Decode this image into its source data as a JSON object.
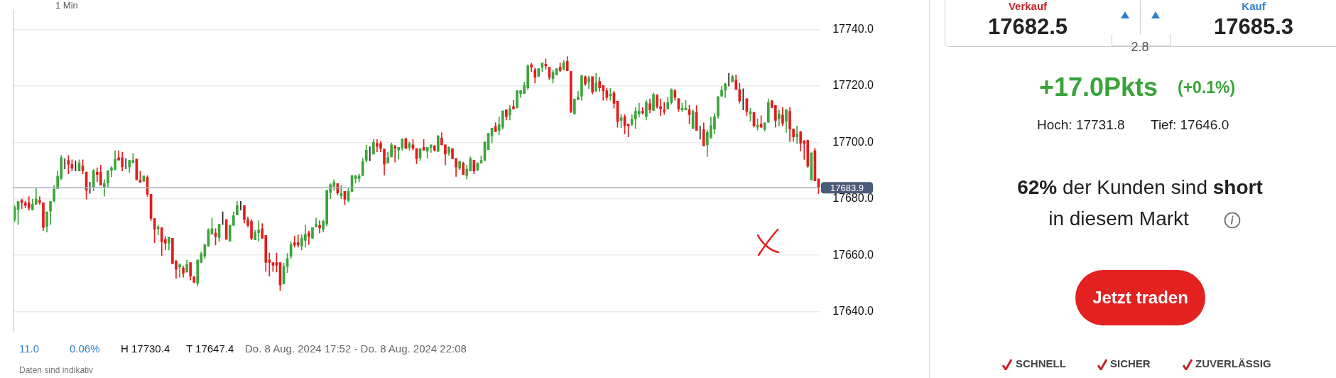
{
  "chart_data": [
    {
      "type": "candlestick",
      "categories": [
        null,
        null,
        null,
        null,
        null,
        null,
        null,
        null,
        null,
        null,
        null,
        null,
        null,
        null,
        null,
        null,
        null,
        null,
        null,
        null,
        null,
        null,
        null,
        null,
        null,
        null,
        null,
        null,
        null,
        null,
        null,
        null,
        null,
        null,
        null,
        null,
        null,
        null,
        null,
        null,
        null,
        null,
        null,
        null,
        null,
        null,
        null,
        null,
        null,
        null,
        null,
        null,
        null,
        null,
        null,
        null,
        null,
        null,
        null,
        null,
        null,
        null,
        null,
        null,
        null,
        null,
        null,
        null,
        null,
        null,
        null,
        null,
        null,
        null,
        null,
        null,
        null,
        null,
        null,
        null,
        null,
        null,
        null,
        null,
        null,
        null,
        null,
        null,
        null,
        null,
        null,
        null,
        null,
        null,
        null,
        null,
        null,
        null,
        null,
        null,
        null,
        null,
        null,
        null,
        null,
        null,
        null,
        null,
        null,
        null,
        null,
        null,
        null,
        null,
        null,
        null,
        null,
        null,
        null,
        null,
        null,
        null,
        null,
        null,
        null,
        null,
        null,
        null,
        null,
        null,
        null,
        null,
        null,
        null,
        null,
        null,
        null,
        null,
        null,
        null,
        null,
        null,
        null,
        null,
        null,
        null,
        null,
        null,
        null,
        null,
        null,
        null,
        null,
        null,
        null,
        null,
        null,
        null,
        null,
        null,
        null,
        null,
        null,
        null,
        null,
        null,
        null,
        null,
        null,
        null,
        null,
        null,
        null,
        null,
        null,
        null,
        null,
        null,
        null,
        null,
        null,
        null,
        null,
        null,
        null,
        null,
        null,
        null,
        null,
        null,
        null,
        null,
        null,
        null,
        null,
        null,
        null,
        null,
        null,
        null,
        null,
        null,
        null,
        null,
        null,
        null,
        null,
        null,
        null,
        null,
        null,
        null,
        null,
        null,
        null,
        null,
        null,
        null,
        null,
        null,
        null,
        null,
        null,
        null,
        null
      ],
      "ohlc": [
        [
          17672.6,
          17677.6,
          17671.8,
          17677.0
        ],
        [
          17676.2,
          17679.0,
          17670.8,
          17679.0
        ],
        [
          17679.4,
          17679.9,
          17676.4,
          17678.6
        ],
        [
          17678.5,
          17679.1,
          17676.8,
          17677.6
        ],
        [
          17678.5,
          17680.8,
          17675.9,
          17676.7
        ],
        [
          17676.2,
          17679.9,
          17675.9,
          17678.0
        ],
        [
          17678.0,
          17683.8,
          17678.0,
          17679.9
        ],
        [
          17679.4,
          17680.8,
          17678.0,
          17678.6
        ],
        [
          17678.6,
          17678.6,
          17668.7,
          17669.8
        ],
        [
          17670.2,
          17675.4,
          17668.2,
          17675.4
        ],
        [
          17675.6,
          17679.1,
          17670.8,
          17679.0
        ],
        [
          17679.2,
          17684.7,
          17678.8,
          17683.4
        ],
        [
          17683.6,
          17689.8,
          17683.6,
          17688.0
        ],
        [
          17687.2,
          17695.4,
          17686.8,
          17694.6
        ],
        [
          17694.0,
          17694.2,
          17690.6,
          17694.0
        ],
        [
          17693.6,
          17695.3,
          17688.8,
          17692.2
        ],
        [
          17692.2,
          17693.8,
          17689.8,
          17690.8
        ],
        [
          17690.8,
          17693.4,
          17689.8,
          17690.8
        ],
        [
          17689.8,
          17693.8,
          17689.8,
          17692.6
        ],
        [
          17691.7,
          17693.8,
          17688.8,
          17689.8
        ],
        [
          17689.5,
          17689.5,
          17679.9,
          17683.0
        ],
        [
          17683.8,
          17685.9,
          17681.9,
          17683.8
        ],
        [
          17684.2,
          17690.4,
          17682.8,
          17690.0
        ],
        [
          17689.5,
          17691.0,
          17686.0,
          17688.6
        ],
        [
          17689.5,
          17691.9,
          17684.8,
          17684.8
        ],
        [
          17684.2,
          17686.8,
          17680.9,
          17685.4
        ],
        [
          17685.6,
          17690.0,
          17684.2,
          17690.0
        ],
        [
          17690.0,
          17691.4,
          17687.8,
          17691.0
        ],
        [
          17690.3,
          17697.0,
          17690.3,
          17694.1
        ],
        [
          17694.6,
          17697.0,
          17693.7,
          17693.7
        ],
        [
          17694.6,
          17696.5,
          17689.8,
          17691.3
        ],
        [
          17690.8,
          17694.2,
          17690.6,
          17690.8
        ],
        [
          17691.3,
          17693.6,
          17689.4,
          17693.6
        ],
        [
          17692.7,
          17696.0,
          17692.7,
          17693.6
        ],
        [
          17694.1,
          17694.1,
          17686.7,
          17686.7
        ],
        [
          17686.6,
          17689.8,
          17685.8,
          17685.8
        ],
        [
          17686.2,
          17688.1,
          17686.2,
          17688.1
        ],
        [
          17687.6,
          17688.2,
          17680.8,
          17681.6
        ],
        [
          17681.6,
          17681.6,
          17672.2,
          17673.0
        ],
        [
          17673.0,
          17673.0,
          17664.4,
          17669.2
        ],
        [
          17669.4,
          17670.8,
          17667.2,
          17670.0
        ],
        [
          17669.8,
          17669.8,
          17659.8,
          17664.7
        ],
        [
          17665.6,
          17666.6,
          17661.8,
          17664.2
        ],
        [
          17664.2,
          17666.4,
          17661.8,
          17666.4
        ],
        [
          17666.0,
          17666.0,
          17657.0,
          17657.0
        ],
        [
          17657.9,
          17658.2,
          17651.8,
          17655.0
        ],
        [
          17655.8,
          17657.0,
          17652.2,
          17656.6
        ],
        [
          17655.4,
          17656.2,
          17652.2,
          17653.6
        ],
        [
          17654.0,
          17658.2,
          17654.0,
          17656.8
        ],
        [
          17657.4,
          17657.4,
          17651.2,
          17652.6
        ],
        [
          17652.2,
          17652.6,
          17650.2,
          17650.4
        ],
        [
          17650.0,
          17658.3,
          17649.2,
          17658.3
        ],
        [
          17657.4,
          17661.2,
          17657.4,
          17660.5
        ],
        [
          17659.6,
          17663.8,
          17658.8,
          17663.8
        ],
        [
          17663.2,
          17669.4,
          17663.2,
          17669.0
        ],
        [
          17667.4,
          17673.2,
          17667.4,
          17669.4
        ],
        [
          17667.8,
          17669.4,
          17663.6,
          17666.6
        ],
        [
          17666.2,
          17671.0,
          17664.8,
          17671.0
        ],
        [
          17671.8,
          17675.4,
          17670.8,
          17671.8
        ],
        [
          17672.6,
          17672.6,
          17665.6,
          17665.6
        ],
        [
          17665.0,
          17670.6,
          17665.0,
          17670.6
        ],
        [
          17670.6,
          17675.4,
          17670.6,
          17674.0
        ],
        [
          17674.2,
          17679.1,
          17674.2,
          17677.5
        ],
        [
          17677.0,
          17679.1,
          17676.0,
          17677.0
        ],
        [
          17677.6,
          17677.6,
          17671.4,
          17672.6
        ],
        [
          17672.6,
          17673.6,
          17670.0,
          17670.6
        ],
        [
          17672.0,
          17672.6,
          17665.4,
          17666.0
        ],
        [
          17665.4,
          17668.8,
          17665.4,
          17668.0
        ],
        [
          17668.0,
          17672.2,
          17665.0,
          17668.9
        ],
        [
          17669.4,
          17671.2,
          17666.0,
          17666.0
        ],
        [
          17667.0,
          17667.0,
          17654.2,
          17657.4
        ],
        [
          17658.3,
          17660.8,
          17652.6,
          17657.4
        ],
        [
          17657.4,
          17657.4,
          17654.2,
          17656.4
        ],
        [
          17657.4,
          17660.8,
          17654.0,
          17656.4
        ],
        [
          17657.4,
          17657.4,
          17647.4,
          17649.4
        ],
        [
          17649.8,
          17657.2,
          17649.8,
          17656.0
        ],
        [
          17656.0,
          17660.6,
          17653.8,
          17658.8
        ],
        [
          17659.6,
          17664.8,
          17658.8,
          17663.8
        ],
        [
          17664.4,
          17666.8,
          17662.8,
          17663.6
        ],
        [
          17664.4,
          17667.2,
          17662.8,
          17663.6
        ],
        [
          17663.2,
          17667.2,
          17661.8,
          17666.0
        ],
        [
          17665.2,
          17670.8,
          17662.8,
          17667.4
        ],
        [
          17667.9,
          17668.6,
          17663.8,
          17666.6
        ],
        [
          17666.0,
          17669.8,
          17666.0,
          17669.8
        ],
        [
          17670.0,
          17673.2,
          17670.0,
          17671.0
        ],
        [
          17670.6,
          17672.2,
          17667.8,
          17669.7
        ],
        [
          17669.2,
          17672.4,
          17668.2,
          17672.0
        ],
        [
          17671.1,
          17683.0,
          17670.4,
          17683.0
        ],
        [
          17682.2,
          17685.4,
          17680.0,
          17685.0
        ],
        [
          17684.4,
          17686.8,
          17683.0,
          17685.8
        ],
        [
          17685.4,
          17685.4,
          17681.4,
          17682.0
        ],
        [
          17681.0,
          17684.8,
          17680.0,
          17682.0
        ],
        [
          17682.6,
          17682.6,
          17677.8,
          17679.8
        ],
        [
          17679.4,
          17683.8,
          17678.8,
          17682.6
        ],
        [
          17682.6,
          17688.4,
          17682.4,
          17688.1
        ],
        [
          17687.1,
          17688.4,
          17685.6,
          17688.1
        ],
        [
          17687.1,
          17688.8,
          17686.0,
          17688.1
        ],
        [
          17688.2,
          17694.4,
          17688.2,
          17693.2
        ],
        [
          17693.6,
          17699.0,
          17693.0,
          17697.2
        ],
        [
          17696.6,
          17698.4,
          17693.4,
          17696.6
        ],
        [
          17695.8,
          17701.0,
          17695.8,
          17700.0
        ],
        [
          17699.6,
          17701.0,
          17696.6,
          17698.6
        ],
        [
          17699.6,
          17700.4,
          17696.6,
          17697.8
        ],
        [
          17697.6,
          17697.6,
          17688.4,
          17692.2
        ],
        [
          17692.6,
          17696.4,
          17692.6,
          17694.6
        ],
        [
          17694.8,
          17699.8,
          17694.8,
          17699.1
        ],
        [
          17698.6,
          17699.0,
          17693.0,
          17697.8
        ],
        [
          17697.2,
          17698.2,
          17694.0,
          17698.2
        ],
        [
          17698.0,
          17701.4,
          17697.2,
          17701.0
        ],
        [
          17701.4,
          17701.4,
          17697.8,
          17697.8
        ],
        [
          17698.2,
          17700.2,
          17697.2,
          17699.6
        ],
        [
          17699.1,
          17701.0,
          17697.2,
          17697.8
        ],
        [
          17697.8,
          17697.8,
          17692.4,
          17694.2
        ],
        [
          17694.6,
          17697.8,
          17693.6,
          17697.8
        ],
        [
          17698.2,
          17701.0,
          17697.2,
          17697.2
        ],
        [
          17696.8,
          17698.2,
          17694.4,
          17698.2
        ],
        [
          17698.2,
          17699.1,
          17696.4,
          17699.1
        ],
        [
          17698.6,
          17699.0,
          17696.8,
          17697.2
        ],
        [
          17696.8,
          17702.5,
          17696.6,
          17702.2
        ],
        [
          17701.5,
          17703.4,
          17699.1,
          17699.1
        ],
        [
          17699.1,
          17699.1,
          17692.0,
          17695.8
        ],
        [
          17696.2,
          17698.4,
          17695.4,
          17698.2
        ],
        [
          17697.8,
          17697.8,
          17694.2,
          17694.2
        ],
        [
          17694.2,
          17694.4,
          17687.9,
          17691.2
        ],
        [
          17690.8,
          17693.4,
          17690.3,
          17693.2
        ],
        [
          17692.6,
          17693.0,
          17688.6,
          17688.6
        ],
        [
          17688.2,
          17692.0,
          17687.0,
          17690.4
        ],
        [
          17689.8,
          17694.8,
          17689.8,
          17694.2
        ],
        [
          17693.6,
          17693.6,
          17688.8,
          17689.8
        ],
        [
          17690.2,
          17692.8,
          17689.8,
          17692.6
        ],
        [
          17692.6,
          17695.2,
          17692.6,
          17693.6
        ],
        [
          17693.6,
          17700.1,
          17693.4,
          17700.1
        ],
        [
          17697.4,
          17703.2,
          17697.4,
          17703.2
        ],
        [
          17702.2,
          17705.0,
          17699.8,
          17705.0
        ],
        [
          17705.6,
          17707.0,
          17703.8,
          17703.8
        ],
        [
          17704.2,
          17709.0,
          17702.6,
          17706.2
        ],
        [
          17705.3,
          17711.1,
          17704.7,
          17711.1
        ],
        [
          17711.5,
          17711.5,
          17707.9,
          17709.1
        ],
        [
          17709.7,
          17713.0,
          17707.9,
          17711.9
        ],
        [
          17712.7,
          17714.9,
          17711.8,
          17711.8
        ],
        [
          17712.2,
          17718.3,
          17712.2,
          17718.3
        ],
        [
          17717.3,
          17718.3,
          17715.9,
          17718.3
        ],
        [
          17717.3,
          17721.3,
          17717.3,
          17720.1
        ],
        [
          17719.3,
          17727.5,
          17718.7,
          17727.1
        ],
        [
          17727.5,
          17728.0,
          17725.1,
          17726.6
        ],
        [
          17725.7,
          17726.3,
          17721.0,
          17723.0
        ],
        [
          17723.4,
          17726.1,
          17723.1,
          17726.1
        ],
        [
          17726.6,
          17728.1,
          17725.1,
          17728.1
        ],
        [
          17727.7,
          17729.5,
          17725.9,
          17727.0
        ],
        [
          17726.6,
          17726.6,
          17722.2,
          17723.0
        ],
        [
          17722.5,
          17725.5,
          17721.0,
          17724.7
        ],
        [
          17723.9,
          17726.1,
          17723.9,
          17726.1
        ],
        [
          17726.6,
          17728.1,
          17725.1,
          17725.4
        ],
        [
          17725.7,
          17729.0,
          17725.7,
          17728.1
        ],
        [
          17728.7,
          17730.4,
          17725.3,
          17725.3
        ],
        [
          17725.1,
          17725.1,
          17710.5,
          17710.9
        ],
        [
          17710.1,
          17715.3,
          17709.9,
          17715.3
        ],
        [
          17715.1,
          17718.1,
          17715.1,
          17716.1
        ],
        [
          17716.3,
          17723.7,
          17714.9,
          17723.7
        ],
        [
          17723.3,
          17723.5,
          17720.1,
          17720.7
        ],
        [
          17721.3,
          17723.5,
          17718.9,
          17722.7
        ],
        [
          17723.3,
          17723.3,
          17717.1,
          17717.8
        ],
        [
          17718.2,
          17724.5,
          17717.9,
          17721.1
        ],
        [
          17721.6,
          17723.1,
          17718.1,
          17719.3
        ],
        [
          17720.1,
          17720.1,
          17714.9,
          17718.3
        ],
        [
          17718.3,
          17719.1,
          17714.9,
          17715.9
        ],
        [
          17716.5,
          17719.1,
          17714.9,
          17717.1
        ],
        [
          17717.5,
          17718.1,
          17712.1,
          17713.8
        ],
        [
          17714.6,
          17714.6,
          17705.3,
          17707.3
        ],
        [
          17707.8,
          17709.9,
          17705.1,
          17708.7
        ],
        [
          17709.1,
          17709.8,
          17702.9,
          17705.9
        ],
        [
          17706.5,
          17706.5,
          17701.9,
          17705.9
        ],
        [
          17706.3,
          17709.8,
          17705.9,
          17708.2
        ],
        [
          17708.2,
          17712.3,
          17704.9,
          17711.0
        ],
        [
          17710.1,
          17713.9,
          17709.0,
          17711.0
        ],
        [
          17711.0,
          17712.3,
          17709.9,
          17710.5
        ],
        [
          17709.1,
          17714.9,
          17707.9,
          17714.1
        ],
        [
          17713.7,
          17715.4,
          17710.5,
          17711.5
        ],
        [
          17711.3,
          17717.5,
          17711.3,
          17717.0
        ],
        [
          17716.6,
          17717.0,
          17712.1,
          17712.7
        ],
        [
          17712.7,
          17715.4,
          17709.4,
          17711.8
        ],
        [
          17711.5,
          17714.1,
          17709.9,
          17711.0
        ],
        [
          17711.8,
          17715.9,
          17711.8,
          17714.1
        ],
        [
          17714.1,
          17719.0,
          17713.5,
          17718.7
        ],
        [
          17718.3,
          17718.7,
          17714.9,
          17715.9
        ],
        [
          17715.5,
          17715.5,
          17710.9,
          17711.8
        ],
        [
          17711.5,
          17713.9,
          17710.9,
          17712.1
        ],
        [
          17711.5,
          17714.9,
          17711.5,
          17712.1
        ],
        [
          17711.5,
          17713.1,
          17706.6,
          17709.8
        ],
        [
          17704.9,
          17711.5,
          17704.9,
          17711.0
        ],
        [
          17710.6,
          17713.0,
          17704.2,
          17704.2
        ],
        [
          17704.9,
          17705.8,
          17701.1,
          17704.9
        ],
        [
          17704.5,
          17706.9,
          17698.7,
          17698.7
        ],
        [
          17699.1,
          17704.3,
          17694.9,
          17703.5
        ],
        [
          17701.5,
          17708.9,
          17701.5,
          17705.9
        ],
        [
          17704.7,
          17710.1,
          17702.9,
          17709.1
        ],
        [
          17709.3,
          17716.3,
          17708.5,
          17716.1
        ],
        [
          17716.3,
          17719.9,
          17716.3,
          17718.5
        ],
        [
          17718.5,
          17721.0,
          17715.9,
          17720.7
        ],
        [
          17720.9,
          17724.5,
          17719.9,
          17720.9
        ],
        [
          17721.4,
          17723.9,
          17721.4,
          17723.3
        ],
        [
          17722.1,
          17723.9,
          17718.7,
          17718.7
        ],
        [
          17718.7,
          17720.9,
          17713.9,
          17714.7
        ],
        [
          17716.1,
          17719.0,
          17711.5,
          17716.1
        ],
        [
          17715.5,
          17715.5,
          17709.5,
          17710.9
        ],
        [
          17710.1,
          17712.1,
          17707.5,
          17710.9
        ],
        [
          17710.6,
          17710.6,
          17705.3,
          17705.9
        ],
        [
          17705.4,
          17708.3,
          17704.3,
          17706.1
        ],
        [
          17706.5,
          17709.4,
          17705.3,
          17705.3
        ],
        [
          17704.6,
          17706.9,
          17703.9,
          17706.9
        ],
        [
          17707.1,
          17715.4,
          17707.1,
          17714.1
        ],
        [
          17714.7,
          17714.9,
          17712.2,
          17712.3
        ],
        [
          17713.1,
          17713.1,
          17705.3,
          17707.8
        ],
        [
          17708.3,
          17711.5,
          17705.9,
          17710.1
        ],
        [
          17709.7,
          17712.3,
          17705.9,
          17706.7
        ],
        [
          17707.4,
          17711.5,
          17703.5,
          17711.5
        ],
        [
          17711.0,
          17712.3,
          17700.3,
          17704.7
        ],
        [
          17704.7,
          17704.7,
          17700.3,
          17701.9
        ],
        [
          17701.9,
          17705.8,
          17699.5,
          17702.9
        ],
        [
          17703.7,
          17703.9,
          17696.9,
          17699.7
        ],
        [
          17700.5,
          17700.7,
          17693.9,
          17699.5
        ],
        [
          17700.7,
          17700.9,
          17691.1,
          17691.5
        ],
        [
          17686.6,
          17696.3,
          17686.6,
          17696.3
        ],
        [
          17697.1,
          17697.9,
          17686.3,
          17686.3
        ],
        [
          17687.0,
          17687.0,
          17681.8,
          17683.9
        ]
      ],
      "colors": [
        "#3ba53a",
        "#3ba53a",
        "#e31d1d",
        "#e31d1d",
        "#e31d1d",
        "#3ba53a",
        "#3ba53a",
        "#e31d1d",
        "#e31d1d",
        "#3ba53a",
        "#3ba53a",
        "#3ba53a",
        "#3ba53a",
        "#3ba53a",
        "#222222",
        "#e31d1d",
        "#e31d1d",
        "#222222",
        "#3ba53a",
        "#e31d1d",
        "#e31d1d",
        "#222222",
        "#3ba53a",
        "#e31d1d",
        "#e31d1d",
        "#3ba53a",
        "#3ba53a",
        "#3ba53a",
        "#3ba53a",
        "#e31d1d",
        "#e31d1d",
        "#222222",
        "#3ba53a",
        "#3ba53a",
        "#e31d1d",
        "#e31d1d",
        "#3ba53a",
        "#e31d1d",
        "#e31d1d",
        "#e31d1d",
        "#3ba53a",
        "#e31d1d",
        "#e31d1d",
        "#3ba53a",
        "#e31d1d",
        "#e31d1d",
        "#3ba53a",
        "#e31d1d",
        "#3ba53a",
        "#e31d1d",
        "#e31d1d",
        "#3ba53a",
        "#3ba53a",
        "#3ba53a",
        "#3ba53a",
        "#3ba53a",
        "#e31d1d",
        "#3ba53a",
        "#222222",
        "#e31d1d",
        "#3ba53a",
        "#3ba53a",
        "#3ba53a",
        "#222222",
        "#e31d1d",
        "#e31d1d",
        "#e31d1d",
        "#3ba53a",
        "#3ba53a",
        "#e31d1d",
        "#e31d1d",
        "#e31d1d",
        "#e31d1d",
        "#e31d1d",
        "#e31d1d",
        "#3ba53a",
        "#3ba53a",
        "#3ba53a",
        "#e31d1d",
        "#e31d1d",
        "#3ba53a",
        "#3ba53a",
        "#e31d1d",
        "#3ba53a",
        "#3ba53a",
        "#e31d1d",
        "#3ba53a",
        "#3ba53a",
        "#3ba53a",
        "#3ba53a",
        "#e31d1d",
        "#3ba53a",
        "#e31d1d",
        "#3ba53a",
        "#3ba53a",
        "#3ba53a",
        "#3ba53a",
        "#3ba53a",
        "#3ba53a",
        "#222222",
        "#3ba53a",
        "#e31d1d",
        "#e31d1d",
        "#e31d1d",
        "#3ba53a",
        "#3ba53a",
        "#e31d1d",
        "#3ba53a",
        "#3ba53a",
        "#e31d1d",
        "#3ba53a",
        "#e31d1d",
        "#e31d1d",
        "#3ba53a",
        "#e31d1d",
        "#3ba53a",
        "#3ba53a",
        "#e31d1d",
        "#3ba53a",
        "#e31d1d",
        "#e31d1d",
        "#3ba53a",
        "#e31d1d",
        "#e31d1d",
        "#3ba53a",
        "#e31d1d",
        "#3ba53a",
        "#3ba53a",
        "#e31d1d",
        "#3ba53a",
        "#3ba53a",
        "#3ba53a",
        "#3ba53a",
        "#3ba53a",
        "#e31d1d",
        "#3ba53a",
        "#3ba53a",
        "#e31d1d",
        "#3ba53a",
        "#e31d1d",
        "#3ba53a",
        "#3ba53a",
        "#3ba53a",
        "#3ba53a",
        "#e31d1d",
        "#e31d1d",
        "#3ba53a",
        "#3ba53a",
        "#e31d1d",
        "#e31d1d",
        "#3ba53a",
        "#3ba53a",
        "#e31d1d",
        "#3ba53a",
        "#e31d1d",
        "#e31d1d",
        "#3ba53a",
        "#3ba53a",
        "#3ba53a",
        "#e31d1d",
        "#3ba53a",
        "#e31d1d",
        "#3ba53a",
        "#e31d1d",
        "#e31d1d",
        "#e31d1d",
        "#3ba53a",
        "#e31d1d",
        "#e31d1d",
        "#3ba53a",
        "#e31d1d",
        "#e31d1d",
        "#3ba53a",
        "#3ba53a",
        "#3ba53a",
        "#e31d1d",
        "#3ba53a",
        "#e31d1d",
        "#3ba53a",
        "#e31d1d",
        "#e31d1d",
        "#e31d1d",
        "#3ba53a",
        "#3ba53a",
        "#e31d1d",
        "#e31d1d",
        "#3ba53a",
        "#3ba53a",
        "#e31d1d",
        "#3ba53a",
        "#e31d1d",
        "#222222",
        "#e31d1d",
        "#3ba53a",
        "#3ba53a",
        "#3ba53a",
        "#3ba53a",
        "#3ba53a",
        "#3ba53a",
        "#222222",
        "#3ba53a",
        "#e31d1d",
        "#e31d1d",
        "#222222",
        "#e31d1d",
        "#3ba53a",
        "#e31d1d",
        "#3ba53a",
        "#e31d1d",
        "#3ba53a",
        "#3ba53a",
        "#e31d1d",
        "#e31d1d",
        "#3ba53a",
        "#e31d1d",
        "#3ba53a",
        "#e31d1d",
        "#e31d1d",
        "#3ba53a",
        "#e31d1d",
        "#e31d1d",
        "#e31d1d",
        "#3ba53a",
        "#e31d1d",
        "#e31d1d"
      ],
      "ylim": [
        17633,
        17747
      ],
      "yticks": [
        {
          "value": 17640,
          "label": "17640.0"
        },
        {
          "value": 17660,
          "label": "17660.0"
        },
        {
          "value": 17680,
          "label": "17680.0"
        },
        {
          "value": 17700,
          "label": "17700.0"
        },
        {
          "value": 17720,
          "label": "17720.0"
        },
        {
          "value": 17740,
          "label": "17740.0"
        }
      ],
      "grid": "y",
      "ref_lines": [
        {
          "axis": "y",
          "value": 17683.9,
          "label": "17683.9",
          "color": "#a3adbb"
        }
      ],
      "annotations": [
        "1 Min",
        "11.0",
        "0.06%",
        "H 17730.4",
        "T 17647.4",
        "Do. 8 Aug. 2024 17:52 - Do. 8 Aug. 2024 22:08",
        "Daten sind indikativ"
      ]
    },
    {
      "type": "other",
      "annotations": [
        "Verkauf",
        "17682.5",
        "Kauf",
        "17685.3",
        "2.8",
        "+17.0Pkts",
        "(+0.1%)",
        "Hoch: 17731.8",
        "Tief: 17646.0",
        "62% der Kunden sind short",
        "in diesem Markt",
        "Jetzt traden",
        "SCHNELL",
        "SICHER",
        "ZUVERLÄSSIG"
      ]
    }
  ]
}
